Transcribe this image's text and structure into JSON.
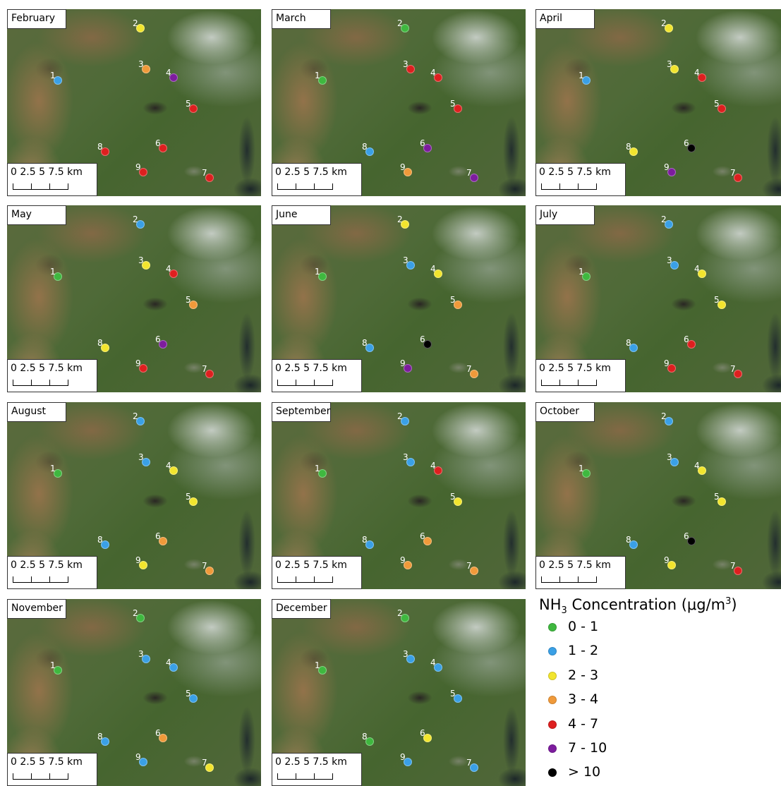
{
  "legend": {
    "title_prefix": "NH",
    "title_sub": "3",
    "title_mid": " Concentration (μg/m",
    "title_sup": "3",
    "title_suffix": ")",
    "items": [
      {
        "label": "0 - 1",
        "color": "#3fb83f"
      },
      {
        "label": "1 - 2",
        "color": "#3aa0e6"
      },
      {
        "label": "2 - 3",
        "color": "#f2e52e"
      },
      {
        "label": "3 - 4",
        "color": "#f09a3a"
      },
      {
        "label": "4 - 7",
        "color": "#de1f1f"
      },
      {
        "label": "7 - 10",
        "color": "#7d1c9e"
      },
      {
        "label": "> 10",
        "color": "#000000"
      }
    ]
  },
  "scale_bar": {
    "text": "0 2.5 5 7.5 km"
  },
  "site_ids": [
    "1",
    "2",
    "3",
    "4",
    "5",
    "6",
    "7",
    "8",
    "9"
  ],
  "months": [
    {
      "name": "February",
      "classes": [
        1,
        2,
        3,
        5,
        4,
        4,
        4,
        4,
        4
      ]
    },
    {
      "name": "March",
      "classes": [
        0,
        0,
        4,
        4,
        4,
        5,
        5,
        1,
        3
      ]
    },
    {
      "name": "April",
      "classes": [
        1,
        2,
        2,
        4,
        4,
        6,
        4,
        2,
        5
      ]
    },
    {
      "name": "May",
      "classes": [
        0,
        1,
        2,
        4,
        3,
        5,
        4,
        2,
        4
      ]
    },
    {
      "name": "June",
      "classes": [
        0,
        2,
        1,
        2,
        3,
        6,
        3,
        1,
        5
      ]
    },
    {
      "name": "July",
      "classes": [
        0,
        1,
        1,
        2,
        2,
        4,
        4,
        1,
        4
      ]
    },
    {
      "name": "August",
      "classes": [
        0,
        1,
        1,
        2,
        2,
        3,
        3,
        1,
        2
      ]
    },
    {
      "name": "September",
      "classes": [
        0,
        1,
        1,
        4,
        2,
        3,
        3,
        1,
        3
      ]
    },
    {
      "name": "October",
      "classes": [
        0,
        1,
        1,
        2,
        2,
        6,
        4,
        1,
        2
      ]
    },
    {
      "name": "November",
      "classes": [
        0,
        0,
        1,
        1,
        1,
        3,
        2,
        1,
        1
      ]
    },
    {
      "name": "December",
      "classes": [
        0,
        0,
        1,
        1,
        1,
        2,
        1,
        0,
        1
      ]
    }
  ]
}
